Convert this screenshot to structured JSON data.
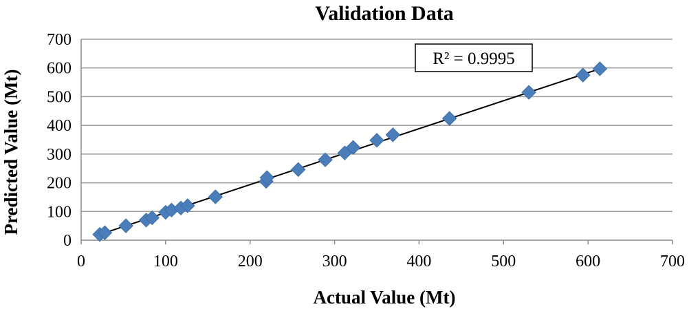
{
  "chart_data": {
    "type": "scatter",
    "title": "Validation Data",
    "xlabel": "Actual Value (Mt)",
    "ylabel": "Predicted Value (Mt)",
    "xlim": [
      0,
      700
    ],
    "ylim": [
      0,
      700
    ],
    "xticks": [
      "0",
      "100",
      "200",
      "300",
      "400",
      "500",
      "600",
      "700"
    ],
    "yticks": [
      "0",
      "100",
      "200",
      "300",
      "400",
      "500",
      "600",
      "700"
    ],
    "grid": "horizontal",
    "legend": "none",
    "marker": {
      "shape": "diamond",
      "color": "#4a7ebb"
    },
    "trendline": {
      "type": "linear",
      "from": [
        22,
        20
      ],
      "to": [
        614,
        597
      ],
      "color": "#000000"
    },
    "annotation": "R² = 0.9995",
    "points": [
      [
        22,
        20
      ],
      [
        28,
        26
      ],
      [
        53,
        50
      ],
      [
        77,
        70
      ],
      [
        84,
        78
      ],
      [
        100,
        97
      ],
      [
        107,
        105
      ],
      [
        118,
        112
      ],
      [
        126,
        120
      ],
      [
        159,
        151
      ],
      [
        219,
        205
      ],
      [
        220,
        218
      ],
      [
        257,
        246
      ],
      [
        289,
        280
      ],
      [
        312,
        304
      ],
      [
        322,
        323
      ],
      [
        350,
        348
      ],
      [
        369,
        367
      ],
      [
        436,
        424
      ],
      [
        530,
        515
      ],
      [
        594,
        575
      ],
      [
        614,
        597
      ]
    ]
  }
}
